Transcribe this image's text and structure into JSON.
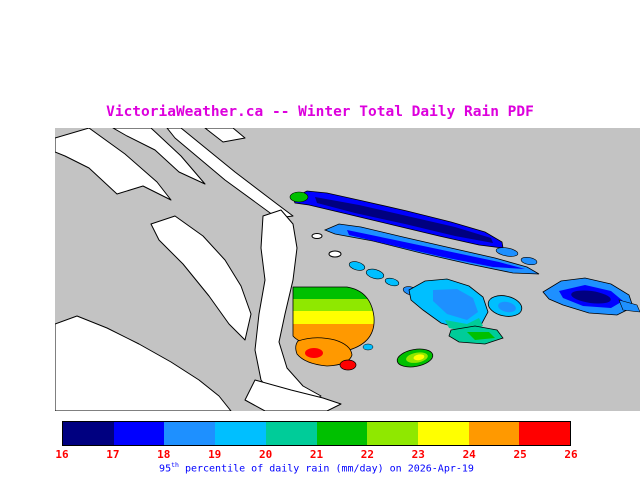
{
  "title": "VictoriaWeather.ca -- Winter Total Daily Rain PDF",
  "colors": {
    "page_background": "#ffffff",
    "title": "#dd00dd",
    "water": "#c3c3c3",
    "land": "#ffffff",
    "coastline": "#000000",
    "tick_label": "#ff0000",
    "caption": "#0000ff"
  },
  "colorbar": {
    "labels": [
      "16",
      "17",
      "18",
      "19",
      "20",
      "21",
      "22",
      "23",
      "24",
      "25",
      "26"
    ],
    "colors": [
      "#000080",
      "#0000ff",
      "#1e90ff",
      "#00bfff",
      "#00cc99",
      "#00c000",
      "#8fe800",
      "#ffff00",
      "#ff9900",
      "#ff0000"
    ]
  },
  "caption": {
    "value": "95",
    "sup": "th",
    "rest": " percentile of daily rain (mm/day) on 2026-Apr-19"
  },
  "chart_data": {
    "type": "heatmap",
    "title": "VictoriaWeather.ca -- Winter Total Daily Rain PDF",
    "caption": "95th percentile of daily rain (mm/day) on 2026-Apr-19",
    "date": "2026-Apr-19",
    "units": "mm/day",
    "colorbar": {
      "min": 16,
      "max": 26,
      "tick_labels": [
        "16",
        "17",
        "18",
        "19",
        "20",
        "21",
        "22",
        "23",
        "24",
        "25",
        "26"
      ],
      "colors": [
        "#000080",
        "#0000ff",
        "#1e90ff",
        "#00bfff",
        "#00cc99",
        "#00c000",
        "#8fe800",
        "#ffff00",
        "#ff9900",
        "#ff0000"
      ],
      "orientation": "horizontal",
      "position": "bottom"
    },
    "regions_approx_values": [
      {
        "region": "northern gulf islands (upper-right streaks)",
        "value_range": [
          16,
          18
        ]
      },
      {
        "region": "outer islands far right",
        "value_range": [
          16,
          18
        ]
      },
      {
        "region": "san juan islands cluster (mid-right)",
        "value_range": [
          18,
          21
        ]
      },
      {
        "region": "central saanich fan (top to bottom bands)",
        "value_range": [
          21,
          25
        ]
      },
      {
        "region": "victoria core blob (orange/red)",
        "value_range": [
          24,
          26
        ]
      },
      {
        "region": "small south-east island (green/yellow)",
        "value_range": [
          21,
          23
        ]
      }
    ],
    "map_background": "land white, water gray"
  }
}
